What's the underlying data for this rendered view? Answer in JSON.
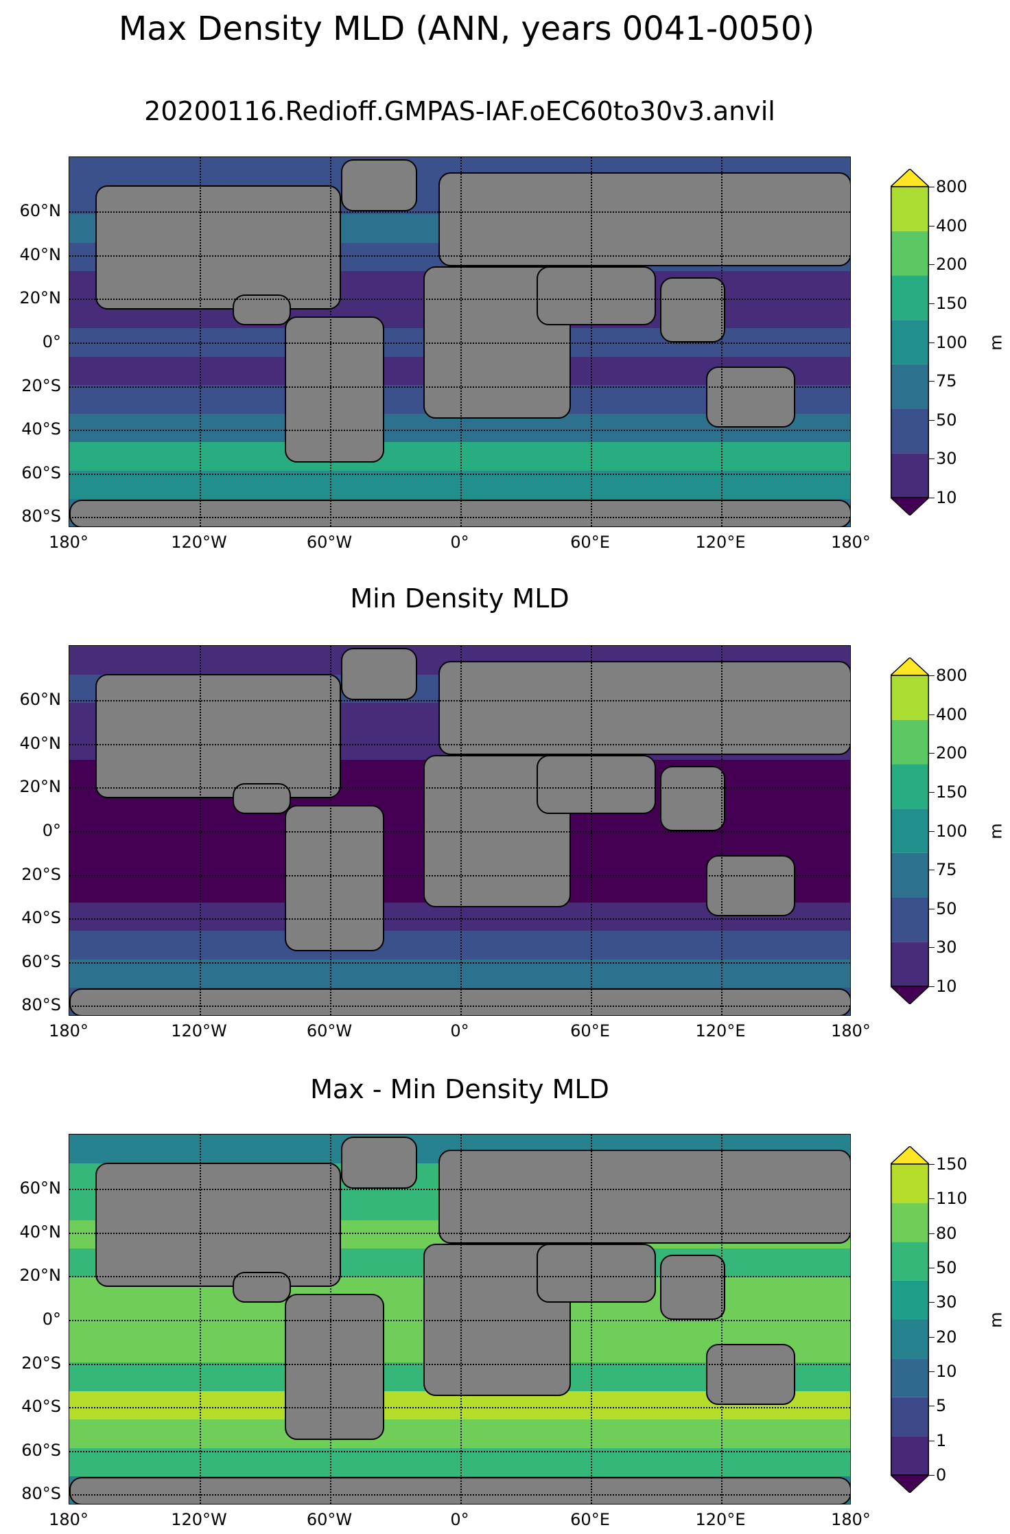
{
  "figure": {
    "title": "Max Density MLD (ANN, years 0041-0050)",
    "panels": [
      {
        "title": "20200116.Redioff.GMPAS-IAF.oEC60to30v3.anvil",
        "colorbar": {
          "unit": "m",
          "levels": [
            "10",
            "30",
            "50",
            "75",
            "100",
            "150",
            "200",
            "400",
            "800"
          ],
          "colors": [
            "#440154",
            "#472c7a",
            "#3b518b",
            "#2c718e",
            "#21908d",
            "#27ad81",
            "#5cc863",
            "#aadc32",
            "#fde725"
          ]
        },
        "zonal_bands": [
          "#3b518b",
          "#3b518b",
          "#2c718e",
          "#3b518b",
          "#472c7a",
          "#472c7a",
          "#3b518b",
          "#472c7a",
          "#3b518b",
          "#2c718e",
          "#27ad81",
          "#21908d",
          "#2c718e"
        ]
      },
      {
        "title": "Min Density MLD",
        "colorbar": {
          "unit": "m",
          "levels": [
            "10",
            "30",
            "50",
            "75",
            "100",
            "150",
            "200",
            "400",
            "800"
          ],
          "colors": [
            "#440154",
            "#472c7a",
            "#3b518b",
            "#2c718e",
            "#21908d",
            "#27ad81",
            "#5cc863",
            "#aadc32",
            "#fde725"
          ]
        },
        "zonal_bands": [
          "#472c7a",
          "#3b518b",
          "#472c7a",
          "#472c7a",
          "#440154",
          "#440154",
          "#440154",
          "#440154",
          "#440154",
          "#472c7a",
          "#3b518b",
          "#2c718e",
          "#3b518b"
        ]
      },
      {
        "title": "Max - Min Density MLD",
        "colorbar": {
          "unit": "m",
          "levels": [
            "0",
            "1",
            "5",
            "10",
            "20",
            "30",
            "50",
            "80",
            "110",
            "150"
          ],
          "colors": [
            "#440154",
            "#482878",
            "#3e4989",
            "#31688e",
            "#26828e",
            "#1f9e89",
            "#35b779",
            "#6ece58",
            "#b5de2b",
            "#fde725"
          ]
        },
        "zonal_bands": [
          "#26828e",
          "#35b779",
          "#35b779",
          "#6ece58",
          "#35b779",
          "#6ece58",
          "#6ece58",
          "#6ece58",
          "#35b779",
          "#b5de2b",
          "#6ece58",
          "#35b779",
          "#26828e"
        ]
      }
    ],
    "lat_labels": [
      "60°N",
      "40°N",
      "20°N",
      "0°",
      "20°S",
      "40°S",
      "60°S",
      "80°S"
    ],
    "lon_labels": [
      "180°",
      "120°W",
      "60°W",
      "0°",
      "60°E",
      "120°E",
      "180°"
    ],
    "land_color": "#808080"
  }
}
